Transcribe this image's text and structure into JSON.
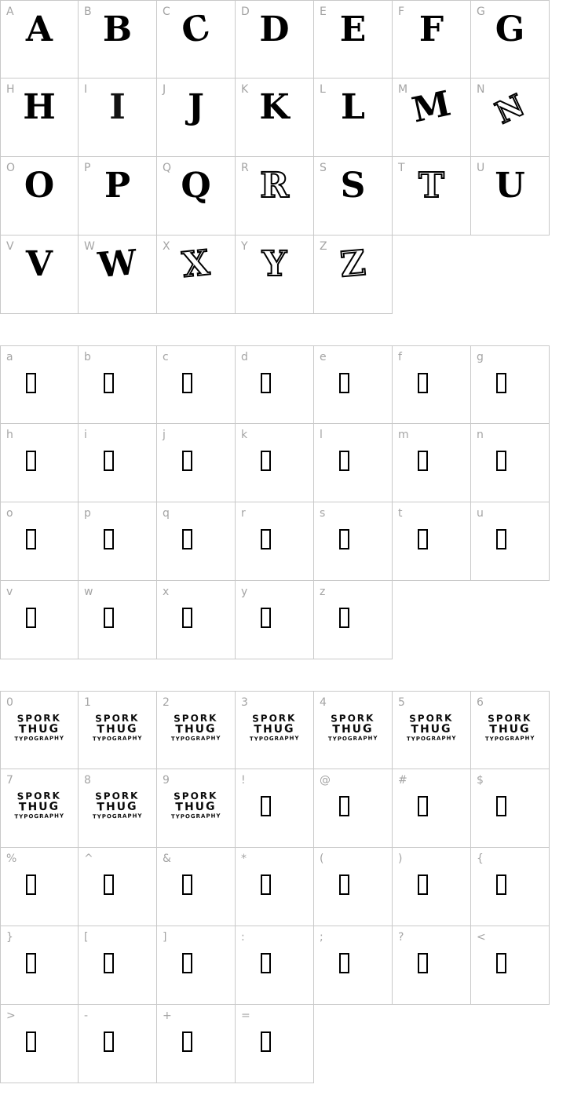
{
  "page": {
    "background_color": "#ffffff",
    "cell_border_color": "#c9c9c9",
    "label_color": "#a4a4a4",
    "glyph_color": "#000000"
  },
  "logo": {
    "line1": "SPORK",
    "line2": "THUG",
    "line3": "TYPOGRAPHY"
  },
  "grids": [
    {
      "name": "uppercase-characters",
      "rows": [
        {
          "cells": [
            {
              "label": "A",
              "variant": "solid"
            },
            {
              "label": "B",
              "variant": "solid"
            },
            {
              "label": "C",
              "variant": "solid"
            },
            {
              "label": "D",
              "variant": "solid"
            },
            {
              "label": "E",
              "variant": "solid"
            },
            {
              "label": "F",
              "variant": "solid"
            },
            {
              "label": "G",
              "variant": "solid"
            }
          ]
        },
        {
          "cells": [
            {
              "label": "H",
              "variant": "solid"
            },
            {
              "label": "I",
              "variant": "solid"
            },
            {
              "label": "J",
              "variant": "solid"
            },
            {
              "label": "K",
              "variant": "solid"
            },
            {
              "label": "L",
              "variant": "solid"
            },
            {
              "label": "M",
              "variant": "solid"
            },
            {
              "label": "N",
              "variant": "outline"
            }
          ]
        },
        {
          "cells": [
            {
              "label": "O",
              "variant": "solid"
            },
            {
              "label": "P",
              "variant": "solid"
            },
            {
              "label": "Q",
              "variant": "solid"
            },
            {
              "label": "R",
              "variant": "outline"
            },
            {
              "label": "S",
              "variant": "solid"
            },
            {
              "label": "T",
              "variant": "outline"
            },
            {
              "label": "U",
              "variant": "solid"
            }
          ]
        },
        {
          "cells": [
            {
              "label": "V",
              "variant": "solid"
            },
            {
              "label": "W",
              "variant": "solid"
            },
            {
              "label": "X",
              "variant": "outline"
            },
            {
              "label": "Y",
              "variant": "outline"
            },
            {
              "label": "Z",
              "variant": "outline"
            }
          ]
        }
      ]
    },
    {
      "name": "lowercase-characters",
      "rows": [
        {
          "cells": [
            {
              "label": "a",
              "variant": "tofu"
            },
            {
              "label": "b",
              "variant": "tofu"
            },
            {
              "label": "c",
              "variant": "tofu"
            },
            {
              "label": "d",
              "variant": "tofu"
            },
            {
              "label": "e",
              "variant": "tofu"
            },
            {
              "label": "f",
              "variant": "tofu"
            },
            {
              "label": "g",
              "variant": "tofu"
            }
          ]
        },
        {
          "cells": [
            {
              "label": "h",
              "variant": "tofu"
            },
            {
              "label": "i",
              "variant": "tofu"
            },
            {
              "label": "j",
              "variant": "tofu"
            },
            {
              "label": "k",
              "variant": "tofu"
            },
            {
              "label": "l",
              "variant": "tofu"
            },
            {
              "label": "m",
              "variant": "tofu"
            },
            {
              "label": "n",
              "variant": "tofu"
            }
          ]
        },
        {
          "cells": [
            {
              "label": "o",
              "variant": "tofu"
            },
            {
              "label": "p",
              "variant": "tofu"
            },
            {
              "label": "q",
              "variant": "tofu"
            },
            {
              "label": "r",
              "variant": "tofu"
            },
            {
              "label": "s",
              "variant": "tofu"
            },
            {
              "label": "t",
              "variant": "tofu"
            },
            {
              "label": "u",
              "variant": "tofu"
            }
          ]
        },
        {
          "cells": [
            {
              "label": "v",
              "variant": "tofu"
            },
            {
              "label": "w",
              "variant": "tofu"
            },
            {
              "label": "x",
              "variant": "tofu"
            },
            {
              "label": "y",
              "variant": "tofu"
            },
            {
              "label": "z",
              "variant": "tofu"
            }
          ]
        }
      ]
    },
    {
      "name": "numbers-and-symbols",
      "rows": [
        {
          "cells": [
            {
              "label": "0",
              "variant": "logo"
            },
            {
              "label": "1",
              "variant": "logo"
            },
            {
              "label": "2",
              "variant": "logo"
            },
            {
              "label": "3",
              "variant": "logo"
            },
            {
              "label": "4",
              "variant": "logo"
            },
            {
              "label": "5",
              "variant": "logo"
            },
            {
              "label": "6",
              "variant": "logo"
            }
          ]
        },
        {
          "cells": [
            {
              "label": "7",
              "variant": "logo"
            },
            {
              "label": "8",
              "variant": "logo"
            },
            {
              "label": "9",
              "variant": "logo"
            },
            {
              "label": "!",
              "variant": "tofu"
            },
            {
              "label": "@",
              "variant": "tofu"
            },
            {
              "label": "#",
              "variant": "tofu"
            },
            {
              "label": "$",
              "variant": "tofu"
            }
          ]
        },
        {
          "cells": [
            {
              "label": "%",
              "variant": "tofu"
            },
            {
              "label": "^",
              "variant": "tofu"
            },
            {
              "label": "&",
              "variant": "tofu"
            },
            {
              "label": "*",
              "variant": "tofu"
            },
            {
              "label": "(",
              "variant": "tofu"
            },
            {
              "label": ")",
              "variant": "tofu"
            },
            {
              "label": "{",
              "variant": "tofu"
            }
          ]
        },
        {
          "cells": [
            {
              "label": "}",
              "variant": "tofu"
            },
            {
              "label": "[",
              "variant": "tofu"
            },
            {
              "label": "]",
              "variant": "tofu"
            },
            {
              "label": ":",
              "variant": "tofu"
            },
            {
              "label": ";",
              "variant": "tofu"
            },
            {
              "label": "?",
              "variant": "tofu"
            },
            {
              "label": "<",
              "variant": "tofu"
            }
          ]
        },
        {
          "cells": [
            {
              "label": ">",
              "variant": "tofu"
            },
            {
              "label": "-",
              "variant": "tofu"
            },
            {
              "label": "+",
              "variant": "tofu"
            },
            {
              "label": "=",
              "variant": "tofu"
            }
          ]
        }
      ]
    }
  ]
}
